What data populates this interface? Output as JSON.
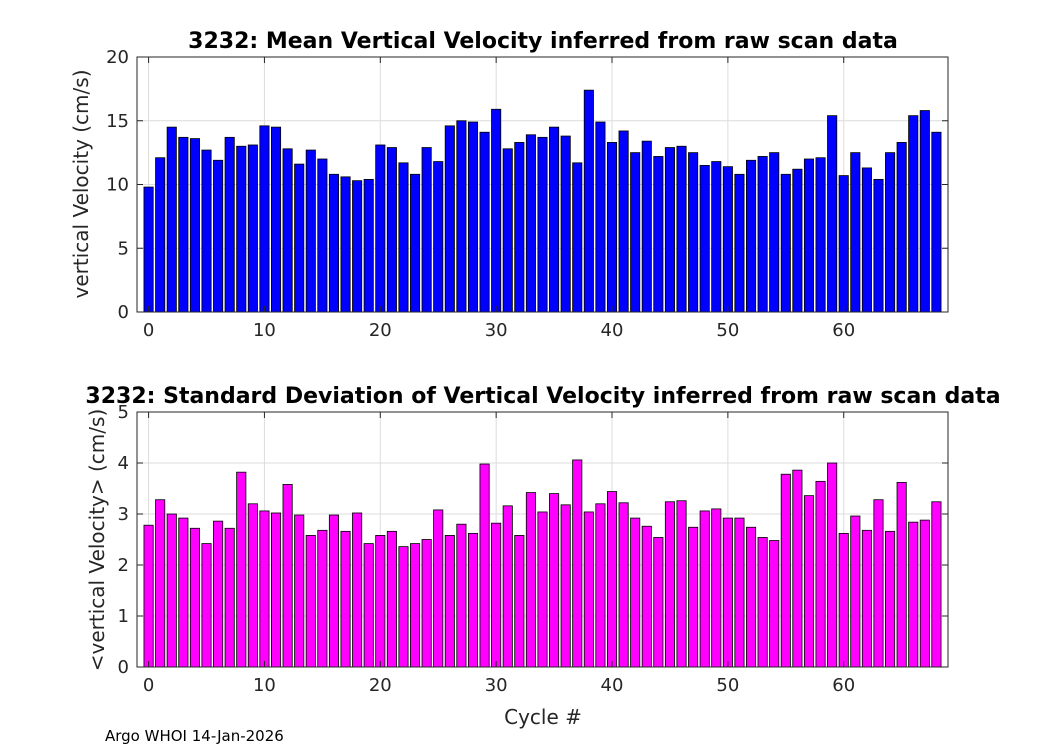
{
  "chart_data": [
    {
      "type": "bar",
      "title": "3232: Mean Vertical Velocity inferred from raw scan data",
      "xlabel": "",
      "ylabel": "vertical Velocity (cm/s)",
      "xlim": [
        -1,
        69
      ],
      "ylim": [
        0,
        20
      ],
      "xticks": [
        0,
        10,
        20,
        30,
        40,
        50,
        60
      ],
      "yticks": [
        0,
        5,
        10,
        15,
        20
      ],
      "grid": true,
      "color": "#0000ff",
      "x": [
        0,
        1,
        2,
        3,
        4,
        5,
        6,
        7,
        8,
        9,
        10,
        11,
        12,
        13,
        14,
        15,
        16,
        17,
        18,
        19,
        20,
        21,
        22,
        23,
        24,
        25,
        26,
        27,
        28,
        29,
        30,
        31,
        32,
        33,
        34,
        35,
        36,
        37,
        38,
        39,
        40,
        41,
        42,
        43,
        44,
        45,
        46,
        47,
        48,
        49,
        50,
        51,
        52,
        53,
        54,
        55,
        56,
        57,
        58,
        59,
        60,
        61,
        62,
        63,
        64,
        65,
        66,
        67,
        68
      ],
      "values": [
        9.8,
        12.1,
        14.5,
        13.7,
        13.6,
        12.7,
        11.9,
        13.7,
        13.0,
        13.1,
        14.6,
        14.5,
        12.8,
        11.6,
        12.7,
        12.0,
        10.8,
        10.6,
        10.3,
        10.4,
        13.1,
        12.9,
        11.7,
        10.8,
        12.9,
        11.8,
        14.6,
        15.0,
        14.9,
        14.1,
        15.9,
        12.8,
        13.3,
        13.9,
        13.7,
        14.5,
        13.8,
        11.7,
        17.4,
        14.9,
        13.3,
        14.2,
        12.5,
        13.4,
        12.2,
        12.9,
        13.0,
        12.5,
        11.5,
        11.8,
        11.4,
        10.8,
        11.9,
        12.2,
        12.5,
        10.8,
        11.2,
        12.0,
        12.1,
        15.4,
        10.7,
        12.5,
        11.3,
        10.4,
        12.5,
        13.3,
        15.4,
        15.8,
        14.1
      ]
    },
    {
      "type": "bar",
      "title": "3232: Standard Deviation of Vertical Velocity inferred from raw scan data",
      "xlabel": "Cycle #",
      "ylabel": "<vertical Velocity> (cm/s)",
      "xlim": [
        -1,
        69
      ],
      "ylim": [
        0,
        5
      ],
      "xticks": [
        0,
        10,
        20,
        30,
        40,
        50,
        60
      ],
      "yticks": [
        0,
        1,
        2,
        3,
        4,
        5
      ],
      "grid": true,
      "color": "#ff00ff",
      "x": [
        0,
        1,
        2,
        3,
        4,
        5,
        6,
        7,
        8,
        9,
        10,
        11,
        12,
        13,
        14,
        15,
        16,
        17,
        18,
        19,
        20,
        21,
        22,
        23,
        24,
        25,
        26,
        27,
        28,
        29,
        30,
        31,
        32,
        33,
        34,
        35,
        36,
        37,
        38,
        39,
        40,
        41,
        42,
        43,
        44,
        45,
        46,
        47,
        48,
        49,
        50,
        51,
        52,
        53,
        54,
        55,
        56,
        57,
        58,
        59,
        60,
        61,
        62,
        63,
        64,
        65,
        66,
        67,
        68
      ],
      "values": [
        2.78,
        3.28,
        3.0,
        2.92,
        2.72,
        2.42,
        2.86,
        2.72,
        3.82,
        3.2,
        3.06,
        3.02,
        3.58,
        2.98,
        2.58,
        2.68,
        2.98,
        2.66,
        3.02,
        2.42,
        2.58,
        2.66,
        2.36,
        2.42,
        2.5,
        3.08,
        2.58,
        2.8,
        2.62,
        3.98,
        2.82,
        3.16,
        2.58,
        3.42,
        3.04,
        3.4,
        3.18,
        4.06,
        3.04,
        3.2,
        3.44,
        3.22,
        2.92,
        2.76,
        2.54,
        3.24,
        3.26,
        2.74,
        3.06,
        3.1,
        2.92,
        2.92,
        2.74,
        2.54,
        2.48,
        3.78,
        3.86,
        3.36,
        3.64,
        4.0,
        2.62,
        2.96,
        2.68,
        3.28,
        2.66,
        3.62,
        2.84,
        2.88,
        3.24
      ]
    }
  ],
  "footer": "Argo WHOI 14-Jan-2026"
}
